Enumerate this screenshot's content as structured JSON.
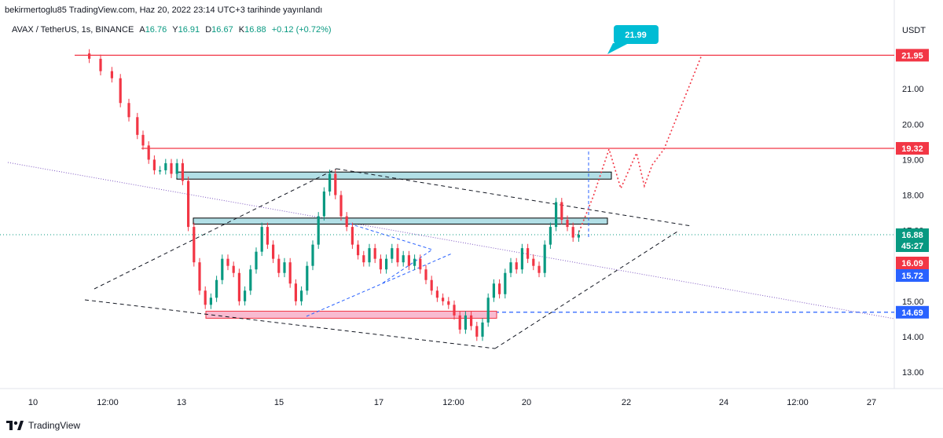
{
  "header": {
    "publish_line": "bekirmertoglu85 TradingView.com, Haz 20, 2022 23:14 UTC+3 tarihinde yayınlandı"
  },
  "legend": {
    "symbol": "AVAX / TetherUS, 1s, BINANCE",
    "open_label": "A",
    "open": "16.76",
    "high_label": "Y",
    "high": "16.91",
    "low_label": "D",
    "low": "16.67",
    "close_label": "K",
    "close": "16.88",
    "change": "+0.12 (+0.72%)"
  },
  "footer": {
    "brand": "TradingView"
  },
  "colors": {
    "up": "#089981",
    "down": "#f23645",
    "resistance": "#f23645",
    "support_blue": "#2962ff",
    "zone_blue": "#b2dfe6",
    "zone_red": "#f8bbd0",
    "callout": "#00bcd4",
    "purple": "#7e57c2"
  },
  "chart_data": {
    "type": "candlestick",
    "currency": "USDT",
    "y_ticks": [
      "13.00",
      "14.00",
      "15.00",
      "16.00",
      "17.00",
      "18.00",
      "19.00",
      "20.00",
      "21.00"
    ],
    "x_ticks": [
      "10",
      "12:00",
      "13",
      "15",
      "17",
      "12:00",
      "20",
      "22",
      "24",
      "12:00",
      "27"
    ],
    "ylim": [
      12.5,
      22.6
    ],
    "price_labels": [
      {
        "value": "21.95",
        "kind": "resistance"
      },
      {
        "value": "19.32",
        "kind": "resistance"
      },
      {
        "value": "16.88",
        "kind": "last"
      },
      {
        "value": "45:27",
        "kind": "countdown"
      },
      {
        "value": "16.09",
        "kind": "resistance"
      },
      {
        "value": "15.72",
        "kind": "blue"
      },
      {
        "value": "14.69",
        "kind": "blue"
      }
    ],
    "callout": "21.99",
    "horizontal_levels": [
      21.95,
      19.32,
      14.69
    ],
    "zones": [
      {
        "top": 18.65,
        "bottom": 18.45,
        "color": "blue"
      },
      {
        "top": 17.35,
        "bottom": 17.2,
        "color": "blue"
      },
      {
        "top": 14.72,
        "bottom": 14.52,
        "color": "red"
      }
    ],
    "price_path": [
      [
        0,
        22.0
      ],
      [
        6,
        21.85
      ],
      [
        10,
        21.5
      ],
      [
        14,
        21.3
      ],
      [
        17,
        20.6
      ],
      [
        20,
        20.2
      ],
      [
        23,
        19.7
      ],
      [
        25,
        19.4
      ],
      [
        27,
        19.0
      ],
      [
        29,
        18.7
      ],
      [
        31,
        18.7
      ],
      [
        33,
        18.9
      ],
      [
        35,
        18.6
      ],
      [
        37,
        18.9
      ],
      [
        39,
        18.4
      ],
      [
        41,
        17.1
      ],
      [
        43,
        16.1
      ],
      [
        45,
        15.3
      ],
      [
        47,
        14.9
      ],
      [
        49,
        15.1
      ],
      [
        51,
        15.6
      ],
      [
        53,
        16.2
      ],
      [
        55,
        16.0
      ],
      [
        57,
        15.8
      ],
      [
        59,
        15.0
      ],
      [
        61,
        15.3
      ],
      [
        63,
        15.9
      ],
      [
        65,
        16.4
      ],
      [
        67,
        17.1
      ],
      [
        69,
        16.6
      ],
      [
        71,
        16.2
      ],
      [
        73,
        15.8
      ],
      [
        75,
        16.1
      ],
      [
        77,
        15.5
      ],
      [
        79,
        15.0
      ],
      [
        81,
        15.3
      ],
      [
        83,
        16.0
      ],
      [
        85,
        16.6
      ],
      [
        87,
        17.4
      ],
      [
        89,
        18.1
      ],
      [
        91,
        18.6
      ],
      [
        93,
        18.0
      ],
      [
        95,
        17.4
      ],
      [
        97,
        17.1
      ],
      [
        99,
        16.6
      ],
      [
        101,
        16.3
      ],
      [
        103,
        16.1
      ],
      [
        105,
        16.5
      ],
      [
        107,
        16.2
      ],
      [
        109,
        15.9
      ],
      [
        111,
        16.2
      ],
      [
        113,
        16.5
      ],
      [
        115,
        16.1
      ],
      [
        117,
        16.3
      ],
      [
        119,
        16.0
      ],
      [
        121,
        16.2
      ],
      [
        123,
        15.9
      ],
      [
        125,
        15.6
      ],
      [
        127,
        15.3
      ],
      [
        129,
        15.1
      ],
      [
        131,
        15.0
      ],
      [
        133,
        14.9
      ],
      [
        135,
        14.6
      ],
      [
        137,
        14.2
      ],
      [
        139,
        14.6
      ],
      [
        141,
        14.3
      ],
      [
        143,
        14.0
      ],
      [
        145,
        14.4
      ],
      [
        147,
        15.1
      ],
      [
        149,
        15.5
      ],
      [
        151,
        15.2
      ],
      [
        153,
        15.8
      ],
      [
        155,
        16.1
      ],
      [
        157,
        15.9
      ],
      [
        159,
        16.5
      ],
      [
        161,
        16.2
      ],
      [
        163,
        16.0
      ],
      [
        165,
        15.8
      ],
      [
        167,
        16.6
      ],
      [
        169,
        17.1
      ],
      [
        171,
        17.8
      ],
      [
        173,
        17.3
      ],
      [
        175,
        17.1
      ],
      [
        177,
        16.8
      ],
      [
        179,
        16.88
      ]
    ]
  }
}
